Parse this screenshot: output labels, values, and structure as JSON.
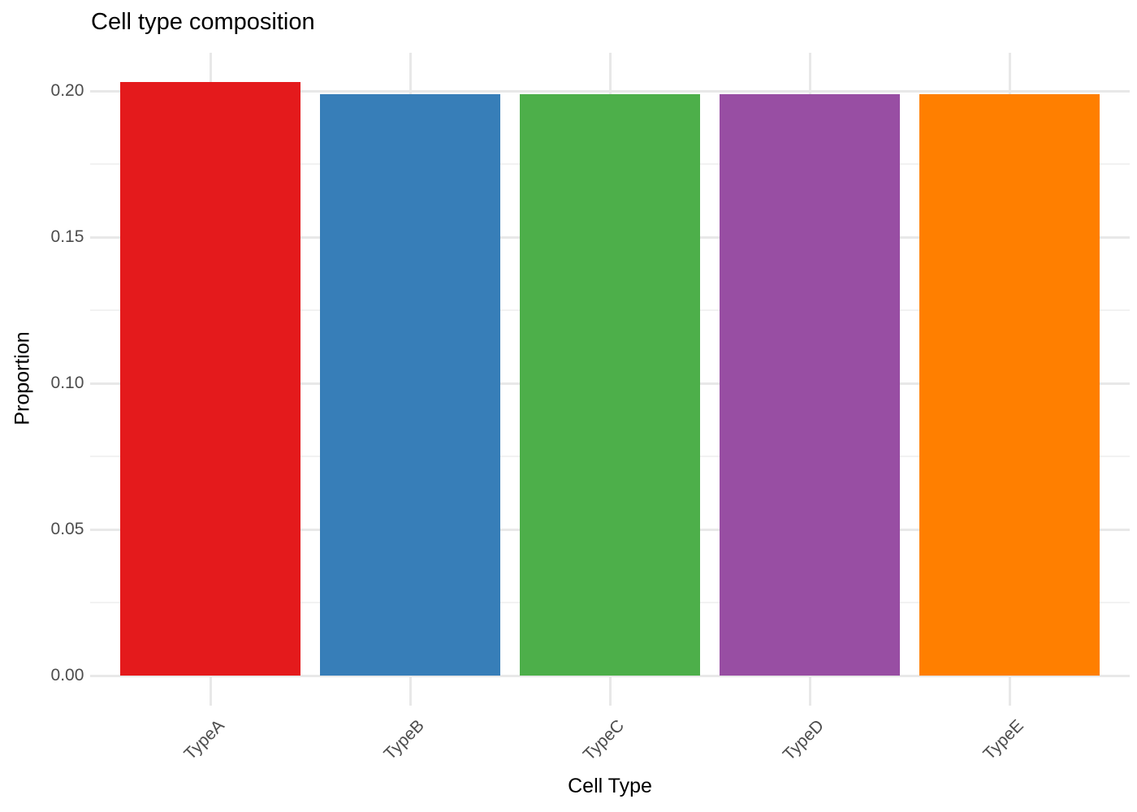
{
  "chart_data": {
    "type": "bar",
    "title": "Cell type composition",
    "xlabel": "Cell Type",
    "ylabel": "Proportion",
    "categories": [
      "TypeA",
      "TypeB",
      "TypeC",
      "TypeD",
      "TypeE"
    ],
    "values": [
      0.203,
      0.199,
      0.199,
      0.199,
      0.199
    ],
    "bar_colors": [
      "#E41A1C",
      "#377EB8",
      "#4DAF4A",
      "#984EA3",
      "#FF7F00"
    ],
    "ylim": [
      0,
      0.213
    ],
    "yticks": [
      {
        "value": 0.0,
        "label": "0.00"
      },
      {
        "value": 0.05,
        "label": "0.05"
      },
      {
        "value": 0.1,
        "label": "0.10"
      },
      {
        "value": 0.15,
        "label": "0.15"
      },
      {
        "value": 0.2,
        "label": "0.20"
      }
    ],
    "yticks_minor": [
      0.025,
      0.075,
      0.125,
      0.175
    ],
    "grid": "major and minor horizontal, major vertical at category centers",
    "legend": "none",
    "background_color": "#FFFFFF",
    "grid_major_color": "#E8E8E8",
    "grid_minor_color": "#F2F2F2",
    "axis_text_color": "#4D4D4D",
    "title_color": "#000000"
  }
}
